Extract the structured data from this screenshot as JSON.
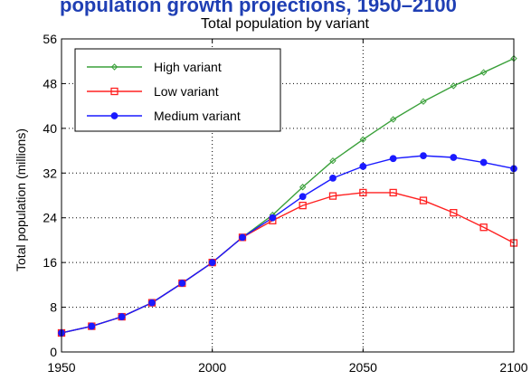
{
  "header": {
    "clipped_text": "population growth projections, 1950–2100"
  },
  "chart_data": {
    "type": "line",
    "title": "Total population by variant",
    "xlabel": "",
    "ylabel": "Total population (millions)",
    "xlim": [
      1950,
      2100
    ],
    "ylim": [
      0,
      56
    ],
    "xticks": [
      1950,
      2000,
      2050,
      2100
    ],
    "yticks": [
      0,
      8,
      16,
      24,
      32,
      40,
      48,
      56
    ],
    "grid": true,
    "legend_position": "top-left",
    "x": [
      1950,
      1960,
      1970,
      1980,
      1990,
      2000,
      2010,
      2020,
      2030,
      2040,
      2050,
      2060,
      2070,
      2080,
      2090,
      2100
    ],
    "series": [
      {
        "name": "High variant",
        "color": "#3aa03a",
        "marker": "diamond",
        "values": [
          3.4,
          4.6,
          6.3,
          8.8,
          12.3,
          16.0,
          20.5,
          24.5,
          29.5,
          34.2,
          38.0,
          41.6,
          44.8,
          47.6,
          50.0,
          52.5
        ]
      },
      {
        "name": "Low variant",
        "color": "#ff2020",
        "marker": "square",
        "values": [
          3.4,
          4.6,
          6.3,
          8.8,
          12.3,
          16.0,
          20.5,
          23.5,
          26.2,
          27.9,
          28.5,
          28.5,
          27.1,
          24.9,
          22.3,
          19.5
        ]
      },
      {
        "name": "Medium variant",
        "color": "#1a1aff",
        "marker": "circle",
        "values": [
          3.4,
          4.6,
          6.3,
          8.8,
          12.3,
          16.0,
          20.5,
          24.0,
          27.8,
          31.1,
          33.2,
          34.6,
          35.1,
          34.8,
          33.9,
          32.8
        ]
      }
    ]
  }
}
